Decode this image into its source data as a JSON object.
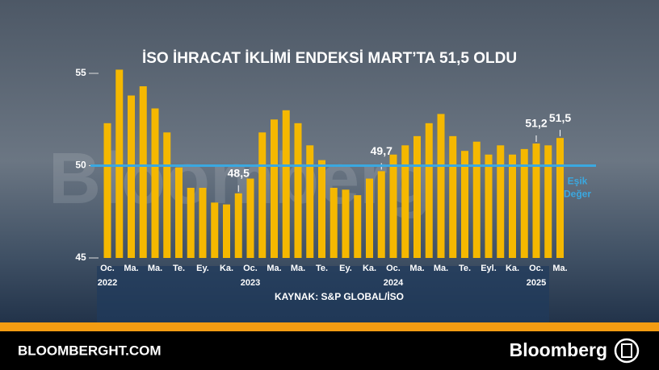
{
  "chart_data": {
    "type": "bar",
    "title": "İSO İHRACAT İKLİMİ ENDEKSİ MART’TA 51,5 OLDU",
    "source": "KAYNAK: S&P GLOBAL/İSO",
    "watermark": "Bloomberg",
    "categories": [
      "Oc.",
      null,
      "Ma.",
      null,
      "Ma.",
      null,
      "Te.",
      null,
      "Ey.",
      null,
      "Ka.",
      null,
      "Oc.",
      null,
      "Ma.",
      null,
      "Ma.",
      null,
      "Te.",
      null,
      "Ey.",
      null,
      "Ka.",
      null,
      "Oc.",
      null,
      "Ma.",
      null,
      "Ma.",
      null,
      "Te.",
      null,
      "Eyl.",
      null,
      "Ka.",
      null,
      "Oc.",
      null,
      "Ma."
    ],
    "years": [
      "2022",
      null,
      null,
      null,
      null,
      null,
      null,
      null,
      null,
      null,
      null,
      null,
      "2023",
      null,
      null,
      null,
      null,
      null,
      null,
      null,
      null,
      null,
      null,
      null,
      "2024",
      null,
      null,
      null,
      null,
      null,
      null,
      null,
      null,
      null,
      null,
      null,
      "2025",
      null,
      null
    ],
    "values": [
      52.3,
      55.2,
      53.8,
      54.3,
      53.1,
      51.8,
      49.9,
      48.8,
      48.8,
      48.0,
      47.9,
      48.5,
      49.3,
      51.8,
      52.5,
      53.0,
      52.3,
      51.1,
      50.3,
      48.8,
      48.7,
      48.4,
      49.3,
      49.7,
      50.6,
      51.1,
      51.6,
      52.3,
      52.8,
      51.6,
      50.8,
      51.3,
      50.6,
      51.1,
      50.6,
      50.9,
      51.2,
      51.1,
      51.5
    ],
    "value_labels": [
      null,
      null,
      null,
      null,
      null,
      null,
      null,
      null,
      null,
      null,
      null,
      "48,5",
      null,
      null,
      null,
      null,
      null,
      null,
      null,
      null,
      null,
      null,
      null,
      "49,7",
      null,
      null,
      null,
      null,
      null,
      null,
      null,
      null,
      null,
      null,
      null,
      null,
      "51,2",
      null,
      "51,5"
    ],
    "color": "#f5b800",
    "ylim": [
      45,
      56
    ],
    "yticks": [
      45,
      50,
      55
    ],
    "reference_line": {
      "value": 50,
      "label": [
        "Eşik",
        "Değer"
      ],
      "color": "#3aa8e0"
    }
  },
  "footer": {
    "site": "BLOOMBERGHT.COM",
    "brand": "Bloomberg"
  }
}
